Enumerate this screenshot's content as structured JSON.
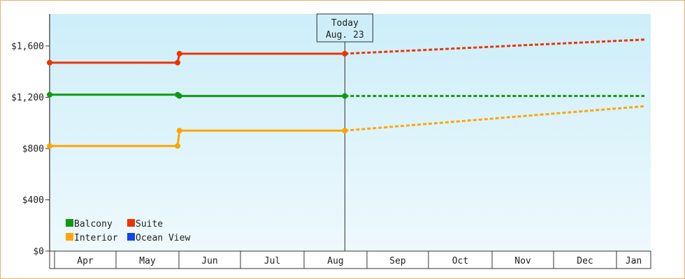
{
  "chart_data": {
    "type": "line",
    "title": "",
    "xlabel": "",
    "ylabel": "",
    "ylim": [
      0,
      1850
    ],
    "yticks": [
      0,
      400,
      800,
      1200,
      1600
    ],
    "ytick_labels": [
      "$0",
      "$400",
      "$800",
      "$1,200",
      "$1,600"
    ],
    "months": [
      "Apr",
      "May",
      "Jun",
      "Jul",
      "Aug",
      "Sep",
      "Oct",
      "Nov",
      "Dec",
      "Jan"
    ],
    "grid": false,
    "legend_position": "bottom-left",
    "today": {
      "title": "Today",
      "date": "Aug. 23"
    },
    "series": [
      {
        "name": "Balcony",
        "color": "#119911",
        "observed": [
          [
            0.0,
            1220
          ],
          [
            2.05,
            1220
          ],
          [
            2.08,
            1210
          ],
          [
            4.73,
            1210
          ]
        ],
        "projected": [
          [
            4.73,
            1210
          ],
          [
            9.53,
            1210
          ]
        ]
      },
      {
        "name": "Suite",
        "color": "#ee3300",
        "observed": [
          [
            0.0,
            1470
          ],
          [
            2.05,
            1470
          ],
          [
            2.08,
            1540
          ],
          [
            4.73,
            1540
          ]
        ],
        "projected": [
          [
            4.73,
            1540
          ],
          [
            9.53,
            1650
          ]
        ]
      },
      {
        "name": "Interior",
        "color": "#ffa500",
        "observed": [
          [
            0.0,
            820
          ],
          [
            2.05,
            820
          ],
          [
            2.08,
            940
          ],
          [
            4.73,
            940
          ]
        ],
        "projected": [
          [
            4.73,
            940
          ],
          [
            9.53,
            1130
          ]
        ]
      },
      {
        "name": "Ocean View",
        "color": "#1144ee",
        "observed": [],
        "projected": []
      }
    ]
  }
}
